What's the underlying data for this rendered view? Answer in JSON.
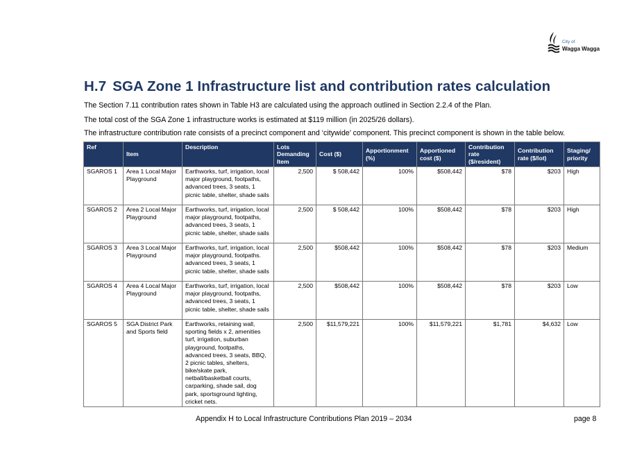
{
  "logo": {
    "line1": "City of",
    "line2": "Wagga Wagga"
  },
  "heading": {
    "number": "H.7",
    "text": "SGA Zone 1 Infrastructure list and contribution rates calculation"
  },
  "paragraphs": [
    "The Section 7.11 contribution rates shown in Table H3 are calculated using the approach outlined in Section 2.2.4 of the Plan.",
    "The total cost of the SGA Zone 1 infrastructure works is estimated at $119 million (in 2025/26 dollars).",
    "The infrastructure contribution rate consists of a precinct component and ‘citywide’ component. This precinct component is shown in the table below."
  ],
  "table": {
    "headers": [
      "Ref",
      "Item",
      "Description",
      "Lots Demanding Item",
      "Cost ($)",
      "Apportionment (%)",
      "Apportioned cost ($)",
      "Contribution rate ($/resident)",
      "Contribution rate ($/lot)",
      "Staging/ priority"
    ],
    "rows": [
      [
        "SGAROS 1",
        "Area 1 Local Major Playground",
        "Earthworks, turf, irrigation, local major playground, footpaths, advanced trees, 3 seats, 1 picnic table, shelter, shade sails",
        "2,500",
        "$ 508,442",
        "100%",
        "$508,442",
        "$78",
        "$203",
        "High"
      ],
      [
        "SGAROS 2",
        "Area 2 Local Major Playground",
        "Earthworks, turf, irrigation, local major playground, footpaths, advanced trees, 3 seats, 1 picnic table, shelter, shade sails",
        "2,500",
        "$ 508,442",
        "100%",
        "$508,442",
        "$78",
        "$203",
        "High"
      ],
      [
        "SGAROS 3",
        "Area 3 Local Major Playground",
        "Earthworks, turf, irrigation, local major playground, footpaths. advanced trees, 3 seats, 1 picnic table, shelter, shade sails",
        "2,500",
        "$508,442",
        "100%",
        "$508,442",
        "$78",
        "$203",
        "Medium"
      ],
      [
        "SGAROS 4",
        "Area 4 Local Major Playground",
        "Earthworks, turf, irrigation, local major playground, footpaths, advanced trees, 3 seats, 1 picnic table, shelter, shade sails",
        "2,500",
        "$508,442",
        "100%",
        "$508,442",
        "$78",
        "$203",
        "Low"
      ],
      [
        "SGAROS 5",
        "SGA District Park and Sports field",
        "Earthworks, retaining wall, sporting fields x 2, amenities turf, irrigation, suburban playground, footpaths, advanced trees, 3 seats, BBQ, 2 picnic tables, shelters, bike/skate park, netball/basketball courts, carparking, shade sail, dog park, sportsground lighting, cricket nets.",
        "2,500",
        "$11,579,221",
        "100%",
        "$11,579,221",
        "$1,781",
        "$4,632",
        "Low"
      ]
    ]
  },
  "footer": {
    "text": "Appendix H to Local Infrastructure Contributions Plan 2019 – 2034",
    "page": "page 8"
  }
}
